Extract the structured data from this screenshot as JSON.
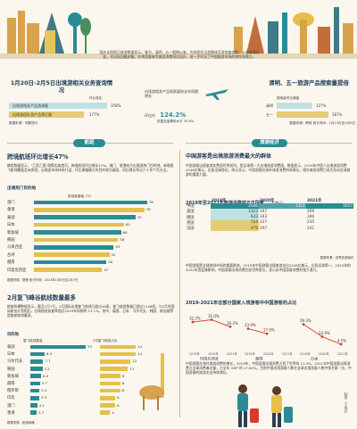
{
  "intro_text": "国庆长假假日旅游数据显示，春节、清明、五一假期以来，内地居民出游整体呈现恢复态势；入境游客方面，也出现回暖迹象。外地游客来华旅游消费再次回升，进一步印证了中国旅游市场的韧性和潜力。",
  "sec1": {
    "title": "1月20日-2月5日出境游相关业务查询情况",
    "subtitle": "环比变化",
    "rows": [
      {
        "label": "出境游相关产品咨询量",
        "value": "358%"
      },
      {
        "label": "出境游团队游产品预订量",
        "value": "177%"
      }
    ],
    "source": "数据来源：同程旅行"
  },
  "sec1_mid": {
    "text": "出境游相关产品搜索量较去年同期增长",
    "stat_prefix": "环比约",
    "stat": "124.2%",
    "footnote": "恢复至疫情前水平 35.6%"
  },
  "sec2": {
    "title": "清明、五一旅游产品搜索量提倍",
    "subtitle": "搜索量环比增幅",
    "rows": [
      {
        "label": "清明",
        "value": "127%"
      },
      {
        "label": "五一",
        "value": "187%"
      }
    ],
    "source": "数据来源：携程  统计时间：1月13日至2月5日"
  },
  "pills": {
    "flights": "航班",
    "economy": "旅游经济"
  },
  "left": {
    "h1": "跨境航班环比增长47%",
    "p1": "携程数据显示，\"乙类乙管\"政策实施首月，跨境航班环比增长47%。澳门、香港成为出境游热门目的地，新增直飞航线覆盖亚洲多国，出境游市场持续升温，环比增幅最大的目的地为泰国，同比增长率达六十余个百分点。",
    "chart1": {
      "title": "出境热门目的地",
      "legend": "航班量增幅（%）",
      "rows": [
        {
          "label": "澳门",
          "value": 78
        },
        {
          "label": "香港",
          "value": 76
        },
        {
          "label": "泰国",
          "value": 70
        },
        {
          "label": "日本",
          "value": 62
        },
        {
          "label": "新加坡",
          "value": 60
        },
        {
          "label": "韩国",
          "value": 58
        },
        {
          "label": "马来西亚",
          "value": 55
        },
        {
          "label": "台湾",
          "value": 52
        },
        {
          "label": "越南",
          "value": 50
        },
        {
          "label": "印度尼西亚",
          "value": 47
        }
      ],
      "source": "数据来源：携程  统计时间：2023年1月8日至2月7日"
    },
    "h2": "2月复飞峰谷航线数量最多",
    "p2": "航旅纵横数据显示，截至2月7日，2月国际出境复飞航线已超过48条，复飞航班数量已超过1146班，与2月份国际航班计划相比，出境航班恢复率超过2019年同期的 13.1%。其中，泰国、日本、马尔代夫、韩国、新加坡等国复航航线最多。",
    "chart2": {
      "title": "目的地",
      "legend_a": "复飞航线数量",
      "legend_b": "2月复飞航班占比",
      "rows": [
        {
          "label": "泰国",
          "a": 33,
          "b": 14
        },
        {
          "label": "日本",
          "a": 8.4,
          "b": 14
        },
        {
          "label": "马尔代夫",
          "a": 7.7,
          "b": 12
        },
        {
          "label": "韩国",
          "a": 7.2,
          "b": 11
        },
        {
          "label": "新加坡",
          "a": 6.4,
          "b": 8
        },
        {
          "label": "越南",
          "a": 5.7,
          "b": 8
        },
        {
          "label": "俄罗斯",
          "a": 5.4,
          "b": 8
        },
        {
          "label": "印尼",
          "a": 5.3,
          "b": 6
        },
        {
          "label": "澳门",
          "a": 4.1,
          "b": 6
        },
        {
          "label": "香港",
          "a": 3.7,
          "b": 4
        }
      ],
      "source": "数据来源：航旅纵横"
    }
  },
  "right": {
    "h1": "中国游客是出境旅游消费最大的群体",
    "p1": "中国游客出境旅游花费居世界前列，是全球第一大出境旅游消费国。数据显示，2019年中国人出境旅游消费2546亿美元，位居全球首位。统计显示，中国游客在海外旅游消费持续增长，境外旅游消费已成为拉动全球旅游的重要力量。",
    "table": {
      "title": "2019年至2021年旅游消费前五位国家",
      "unit": "（亿美元）",
      "headers": [
        "",
        "2019年",
        "2020年",
        "2021年"
      ],
      "rows": [
        [
          "中国",
          "2546",
          "1311",
          "1057"
        ],
        [
          "美国",
          "1323",
          "347",
          "269"
        ],
        [
          "德国",
          "933",
          "343",
          "346"
        ],
        [
          "英国",
          "724",
          "217",
          "235"
        ],
        [
          "法国",
          "479",
          "297",
          "241"
        ]
      ],
      "source": "数据来源：世界旅游组织"
    },
    "p2": "中国游客是全球旅游市场的重要群体，2019年中国游客出境旅游支出2546亿美元，位居全球第一。2020年和2021年受疫情影响，中国游客出境消费仍居世界首位，显示出中国游客消费的强大潜力。",
    "h2": "2019-2021年在部分国家入境游客中中国游客的占比",
    "chart3": {
      "groups": [
        {
          "label": "印度尼西亚",
          "values": [
            32.2,
            35.0,
            26.2
          ],
          "value_labels": [
            "32.2%",
            "35.0%",
            "26.2%"
          ]
        },
        {
          "label": "泰国",
          "values": [
            23.9,
            17.6
          ],
          "value_labels": [
            "23.9%",
            "17.6%"
          ]
        },
        {
          "label": "日本",
          "values": [
            29.3,
            13.9,
            4.5
          ],
          "value_labels": [
            "29.3%",
            "13.9%",
            "4.5%"
          ]
        }
      ],
      "x_labels": [
        "2019年",
        "2020年",
        "2021年"
      ]
    },
    "p3": "中国游客在海外旅游消费的增长，2019年，中国游客出境消费占到了世界的 11.3%，2021年中国游客出境消费占全球消费者总量，占全年 GDP 的 27.80%。目前中国出境游客人数在全球出境游客人数中排名第一位，中国游客的旅游支出持续增长。"
  },
  "vertical_credit": "制图：王雨欣",
  "colors": {
    "accent": "#2b8b94",
    "title": "#1f3c58",
    "bg": "#fbf7ef",
    "alt": "#e5c04a",
    "red": "#d83a2a"
  }
}
